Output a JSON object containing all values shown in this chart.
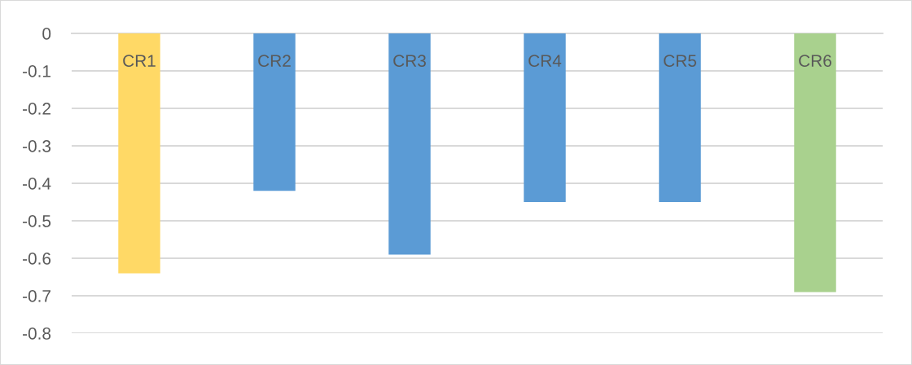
{
  "chart_data": {
    "type": "bar",
    "categories": [
      "CR1",
      "CR2",
      "CR3",
      "CR4",
      "CR5",
      "CR6"
    ],
    "values": [
      -0.64,
      -0.42,
      -0.59,
      -0.45,
      -0.45,
      -0.69
    ],
    "colors": [
      "#ffd966",
      "#5b9bd5",
      "#5b9bd5",
      "#5b9bd5",
      "#5b9bd5",
      "#a9d18e"
    ],
    "ylim": [
      -0.8,
      0
    ],
    "yticks": [
      0,
      -0.1,
      -0.2,
      -0.3,
      -0.4,
      -0.5,
      -0.6,
      -0.7,
      -0.8
    ],
    "grid": "y"
  }
}
